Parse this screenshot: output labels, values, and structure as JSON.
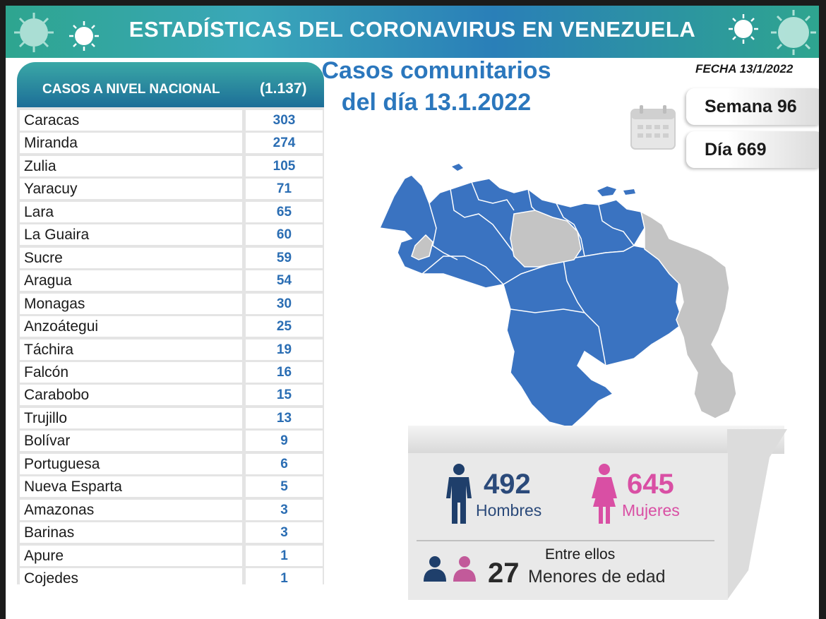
{
  "header": {
    "title": "ESTADÍSTICAS DEL CORONAVIRUS EN VENEZUELA"
  },
  "table": {
    "heading": "CASOS A NIVEL NACIONAL",
    "total": "(1.137)",
    "rows": [
      {
        "state": "Caracas",
        "cases": "303"
      },
      {
        "state": "Miranda",
        "cases": "274"
      },
      {
        "state": "Zulia",
        "cases": "105"
      },
      {
        "state": "Yaracuy",
        "cases": "71"
      },
      {
        "state": "Lara",
        "cases": "65"
      },
      {
        "state": "La Guaira",
        "cases": "60"
      },
      {
        "state": "Sucre",
        "cases": "59"
      },
      {
        "state": "Aragua",
        "cases": "54"
      },
      {
        "state": "Monagas",
        "cases": "30"
      },
      {
        "state": "Anzoátegui",
        "cases": "25"
      },
      {
        "state": "Táchira",
        "cases": "19"
      },
      {
        "state": "Falcón",
        "cases": "16"
      },
      {
        "state": "Carabobo",
        "cases": "15"
      },
      {
        "state": "Trujillo",
        "cases": "13"
      },
      {
        "state": "Bolívar",
        "cases": "9"
      },
      {
        "state": "Portuguesa",
        "cases": "6"
      },
      {
        "state": "Nueva Esparta",
        "cases": "5"
      },
      {
        "state": "Amazonas",
        "cases": "3"
      },
      {
        "state": "Barinas",
        "cases": "3"
      },
      {
        "state": "Apure",
        "cases": "1"
      },
      {
        "state": "Cojedes",
        "cases": "1"
      }
    ]
  },
  "title": {
    "line1": "Casos comunitarios",
    "line2": "del día 13.1.2022"
  },
  "fecha": "FECHA 13/1/2022",
  "semana": "Semana 96",
  "dia": "Día 669",
  "stats": {
    "men_count": "492",
    "men_label": "Hombres",
    "women_count": "645",
    "women_label": "Mujeres",
    "among_label": "Entre ellos",
    "minors_count": "27",
    "minors_label": "Menores de edad"
  },
  "colors": {
    "map_fill": "#3a73c1",
    "map_gray": "#c4c4c4",
    "men": "#1f3f6b",
    "women": "#d94fa4",
    "accent": "#2b77bd"
  },
  "icons": [
    "virus-icon",
    "calendar-icon",
    "man-icon",
    "woman-icon",
    "child-boy-icon",
    "child-girl-icon",
    "venezuela-map"
  ]
}
